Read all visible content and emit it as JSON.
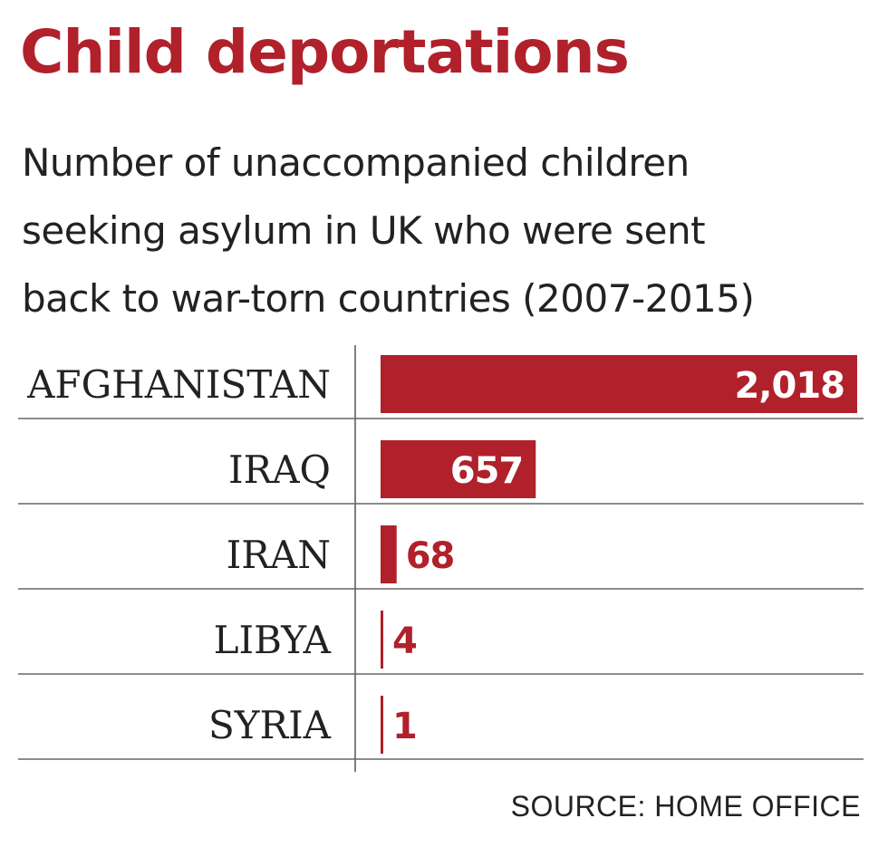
{
  "header": {
    "title": "Child deportations",
    "subtitle_lines": [
      "Number of unaccompanied children",
      "seeking asylum in UK who were sent",
      "back to war-torn countries (2007-2015)"
    ]
  },
  "chart_data": {
    "type": "bar",
    "orientation": "horizontal",
    "title": "Child deportations",
    "subtitle": "Number of unaccompanied children seeking asylum in UK who were sent back to war-torn countries (2007-2015)",
    "categories": [
      "AFGHANISTAN",
      "IRAQ",
      "IRAN",
      "LIBYA",
      "SYRIA"
    ],
    "values": [
      2018,
      657,
      68,
      4,
      1
    ],
    "value_labels": [
      "2,018",
      "657",
      "68",
      "4",
      "1"
    ],
    "xlim": [
      0,
      2018
    ],
    "grid": false,
    "legend": "none",
    "bar_color": "#b0212b",
    "label_color_inside": "#ffffff",
    "label_color_outside": "#b0212b"
  },
  "footer": {
    "source": "SOURCE: HOME OFFICE"
  }
}
